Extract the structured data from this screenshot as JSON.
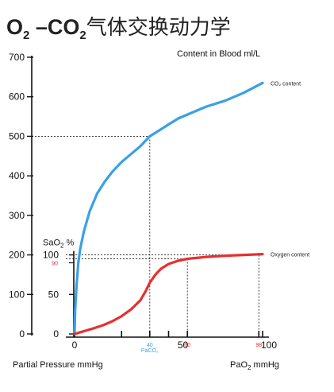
{
  "title": {
    "o2": "O",
    "o2_sub": "2",
    "dash_co": " –CO",
    "co2_sub": "2",
    "cn": "气体交换动力学"
  },
  "chart_data": {
    "type": "line",
    "title": "Content in Blood ml/L",
    "xlabel": "Partial Pressure mmHg",
    "x2label": "PaO",
    "x2label_sub": "2",
    "x2label_unit": " mmHg",
    "ylabel": "",
    "ylim": [
      0,
      700
    ],
    "yticks": [
      {
        "value": 0,
        "label": "0"
      },
      {
        "value": 100,
        "label": "100"
      },
      {
        "value": 200,
        "label": "200"
      },
      {
        "value": 300,
        "label": "300"
      },
      {
        "value": 400,
        "label": "400"
      },
      {
        "value": 500,
        "label": "500"
      },
      {
        "value": 600,
        "label": "600"
      },
      {
        "value": 700,
        "label": "700"
      }
    ],
    "xlim": [
      0,
      100
    ],
    "xticks_inner_positions": [
      0,
      25,
      40,
      50,
      60,
      98,
      100
    ],
    "xtick_labels": [
      {
        "value": 0,
        "label": "0"
      },
      {
        "value": 50,
        "label": "50"
      },
      {
        "value": 100,
        "label": "100"
      }
    ],
    "small_markers": [
      {
        "value": 40,
        "label": "40",
        "sub": "PaCO₂",
        "color": "#3aa0e6"
      },
      {
        "value": 60,
        "label": "60",
        "color": "#e53030"
      },
      {
        "value": 98,
        "label": "98",
        "color": "#e53030"
      }
    ],
    "inner_axis": {
      "title": "SaO",
      "title_sub": "2",
      "title_unit": " %",
      "ticks": [
        {
          "value": 0,
          "label": "0"
        },
        {
          "value": 50,
          "label": "50"
        },
        {
          "value": 100,
          "label": "100"
        }
      ],
      "marker": {
        "value": 90,
        "label": "90",
        "color": "#e53030"
      },
      "range_in_outer_units": [
        0,
        200
      ]
    },
    "series": [
      {
        "name": "CO₂ content",
        "color": "#3aa0e6",
        "x": [
          0,
          0.3,
          1,
          2,
          3,
          5,
          8,
          12,
          16,
          20,
          25,
          30,
          35,
          40,
          45,
          50,
          55,
          60,
          70,
          80,
          90,
          100
        ],
        "y": [
          0,
          60,
          120,
          180,
          215,
          260,
          310,
          355,
          385,
          410,
          435,
          455,
          475,
          500,
          515,
          530,
          545,
          555,
          575,
          590,
          610,
          635
        ]
      },
      {
        "name": "Oxygen content",
        "color": "#e53030",
        "x": [
          0,
          5,
          10,
          15,
          20,
          25,
          30,
          35,
          38,
          40,
          43,
          46,
          50,
          55,
          60,
          70,
          80,
          90,
          100
        ],
        "y": [
          0,
          7,
          14,
          22,
          32,
          45,
          62,
          85,
          110,
          130,
          150,
          165,
          177,
          185,
          190,
          195,
          198,
          200,
          202
        ]
      }
    ],
    "reference_lines": [
      {
        "series": "CO₂ content",
        "x": 40,
        "y": 500
      },
      {
        "series": "Oxygen content",
        "x": 60,
        "y": 190
      },
      {
        "series": "Oxygen content",
        "x": 98,
        "y": 200
      }
    ],
    "grid": false,
    "legend": "inline-labels-right"
  }
}
